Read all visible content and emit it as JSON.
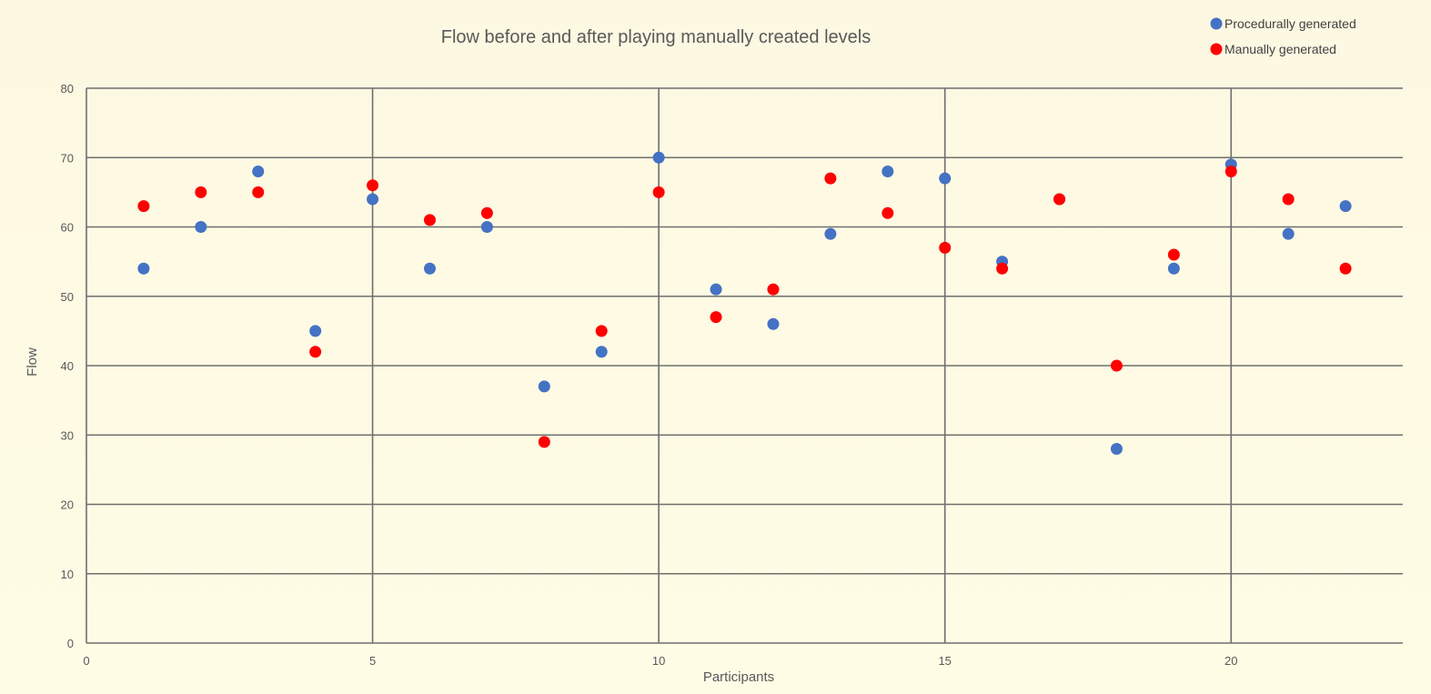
{
  "chart_data": {
    "type": "scatter",
    "title": "Flow before and after playing manually created levels",
    "xlabel": "Participants",
    "ylabel": "Flow",
    "xlim": [
      0,
      23
    ],
    "ylim": [
      0,
      80
    ],
    "x_ticks": [
      0,
      5,
      10,
      15,
      20
    ],
    "y_ticks": [
      0,
      10,
      20,
      30,
      40,
      50,
      60,
      70,
      80
    ],
    "grid": true,
    "legend_position": "top-right",
    "x": [
      1,
      2,
      3,
      4,
      5,
      6,
      7,
      8,
      9,
      10,
      11,
      12,
      13,
      14,
      15,
      16,
      17,
      18,
      19,
      20,
      21,
      22
    ],
    "series": [
      {
        "name": "Procedurally generated",
        "color": "#4472c4",
        "values": [
          54,
          60,
          68,
          45,
          64,
          54,
          60,
          37,
          42,
          70,
          51,
          46,
          59,
          68,
          67,
          55,
          64,
          28,
          54,
          69,
          59,
          63
        ]
      },
      {
        "name": "Manually generated",
        "color": "#ff0000",
        "values": [
          63,
          65,
          65,
          42,
          66,
          61,
          62,
          29,
          45,
          65,
          47,
          51,
          67,
          62,
          57,
          54,
          64,
          40,
          56,
          68,
          64,
          54
        ]
      }
    ]
  }
}
